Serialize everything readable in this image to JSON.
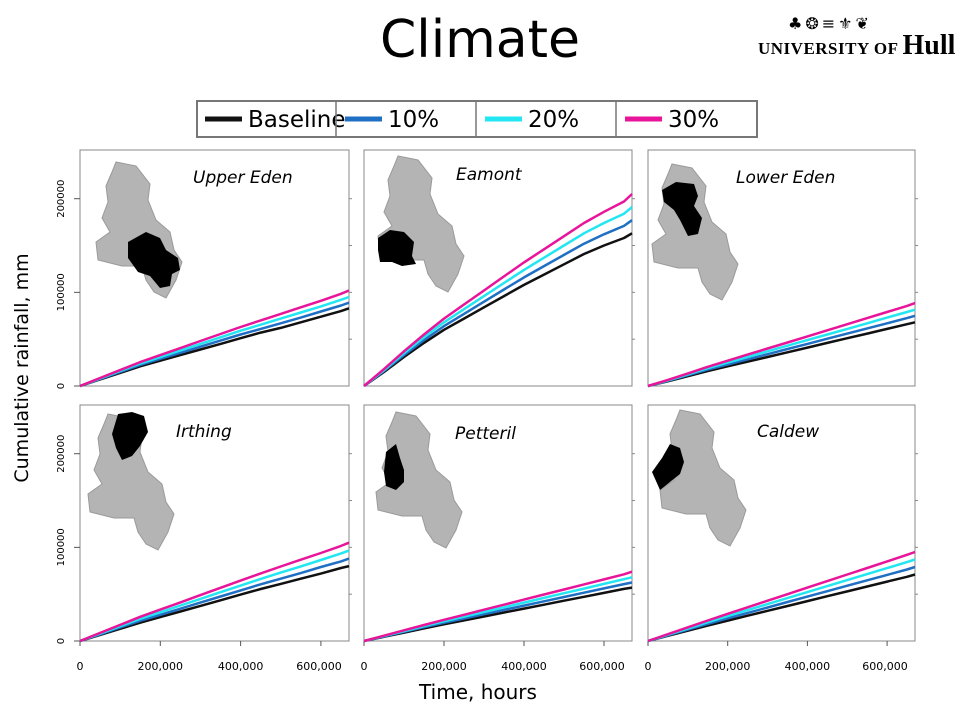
{
  "title": "Climate",
  "logo": {
    "icons": "♣❂≡⚜❦",
    "university": "UNIVERSITY OF",
    "name": "Hull"
  },
  "colors": {
    "baseline": "#111111",
    "p10": "#1f6fc4",
    "p20": "#22e6f2",
    "p30": "#e8159a",
    "map_fill": "#b4b4b4",
    "highlight": "#000000",
    "axis": "#555555"
  },
  "legend": [
    {
      "label": "Baseline",
      "color": "#111111"
    },
    {
      "label": "10%",
      "color": "#1f6fc4"
    },
    {
      "label": "20%",
      "color": "#22e6f2"
    },
    {
      "label": "30%",
      "color": "#e8159a"
    }
  ],
  "ylabel": "Cumulative rainfall,  mm",
  "xlabel": "Time, hours",
  "chart_data": {
    "type": "line",
    "xlim": [
      0,
      670000
    ],
    "ylim": [
      0,
      252000
    ],
    "x_ticks": [
      "0",
      "200,000",
      "400,000",
      "600,000"
    ],
    "y_ticks": [
      "0",
      "100000",
      "200000"
    ],
    "x": [
      0,
      50000,
      100000,
      150000,
      200000,
      250000,
      300000,
      350000,
      400000,
      450000,
      500000,
      550000,
      600000,
      650000,
      670000
    ],
    "panels": [
      {
        "name": "Upper Eden",
        "series": [
          {
            "name": "Baseline",
            "values": [
              0,
              7000,
              14000,
              21000,
              27000,
              33000,
              39000,
              45000,
              51000,
              57000,
              62000,
              68000,
              74000,
              80000,
              83000
            ]
          },
          {
            "name": "10%",
            "values": [
              0,
              7500,
              15000,
              22500,
              29000,
              35500,
              42000,
              48500,
              55000,
              61000,
              67000,
              73000,
              79500,
              86000,
              89000
            ]
          },
          {
            "name": "20%",
            "values": [
              0,
              8000,
              16000,
              24000,
              31000,
              38000,
              45000,
              52000,
              59000,
              65500,
              72000,
              78500,
              85000,
              92000,
              95000
            ]
          },
          {
            "name": "30%",
            "values": [
              0,
              8500,
              17000,
              25500,
              33000,
              40500,
              48000,
              55500,
              63000,
              70000,
              77000,
              84000,
              91000,
              98500,
              102000
            ]
          }
        ]
      },
      {
        "name": "Eamont",
        "series": [
          {
            "name": "Baseline",
            "values": [
              0,
              15000,
              31000,
              46000,
              60000,
              72000,
              84000,
              96000,
              108000,
              119000,
              130000,
              141000,
              150000,
              158000,
              163000
            ]
          },
          {
            "name": "10%",
            "values": [
              0,
              16000,
              33000,
              49000,
              64000,
              77000,
              90000,
              103000,
              116000,
              128000,
              140000,
              152000,
              162000,
              171000,
              177000
            ]
          },
          {
            "name": "20%",
            "values": [
              0,
              17000,
              35000,
              52000,
              68000,
              82000,
              96000,
              110000,
              124000,
              137000,
              150000,
              163000,
              174000,
              184000,
              191000
            ]
          },
          {
            "name": "30%",
            "values": [
              0,
              18000,
              37000,
              55000,
              72000,
              87000,
              102000,
              117000,
              132000,
              146000,
              160000,
              174000,
              186000,
              197000,
              205000
            ]
          }
        ]
      },
      {
        "name": "Lower Eden",
        "series": [
          {
            "name": "Baseline",
            "values": [
              0,
              5000,
              10500,
              16000,
              21000,
              26000,
              31000,
              36000,
              41000,
              46000,
              51000,
              56000,
              61000,
              66000,
              68000
            ]
          },
          {
            "name": "10%",
            "values": [
              0,
              5500,
              11500,
              17500,
              23000,
              28500,
              34000,
              39500,
              45000,
              50500,
              56000,
              61500,
              67000,
              72500,
              75000
            ]
          },
          {
            "name": "20%",
            "values": [
              0,
              6000,
              12500,
              19000,
              25000,
              31000,
              37000,
              43000,
              49000,
              55000,
              61000,
              67000,
              73000,
              79000,
              81500
            ]
          },
          {
            "name": "30%",
            "values": [
              0,
              6500,
              13500,
              20500,
              27000,
              33500,
              40000,
              46500,
              53000,
              59500,
              66000,
              72500,
              79000,
              85500,
              88500
            ]
          }
        ]
      },
      {
        "name": "Irthing",
        "series": [
          {
            "name": "Baseline",
            "values": [
              0,
              6500,
              13000,
              19500,
              25500,
              31500,
              37500,
              43500,
              49500,
              55500,
              61000,
              66500,
              72000,
              78000,
              80000
            ]
          },
          {
            "name": "10%",
            "values": [
              0,
              7200,
              14400,
              21600,
              28000,
              34500,
              41000,
              47500,
              54000,
              60500,
              66500,
              72500,
              79000,
              85000,
              88000
            ]
          },
          {
            "name": "20%",
            "values": [
              0,
              7900,
              15800,
              23700,
              30800,
              37900,
              45000,
              52100,
              59200,
              66300,
              73000,
              79700,
              86500,
              93500,
              96500
            ]
          },
          {
            "name": "30%",
            "values": [
              0,
              8600,
              17200,
              25800,
              33500,
              41200,
              49000,
              56800,
              64500,
              72200,
              79500,
              86800,
              94000,
              101500,
              105000
            ]
          }
        ]
      },
      {
        "name": "Petteril",
        "series": [
          {
            "name": "Baseline",
            "values": [
              0,
              4500,
              9000,
              13500,
              17800,
              22000,
              26200,
              30400,
              34600,
              38800,
              43000,
              47200,
              51400,
              55600,
              57000
            ]
          },
          {
            "name": "10%",
            "values": [
              0,
              4900,
              9800,
              14700,
              19400,
              24000,
              28600,
              33200,
              37800,
              42400,
              47000,
              51600,
              56200,
              60800,
              62500
            ]
          },
          {
            "name": "20%",
            "values": [
              0,
              5300,
              10600,
              15900,
              21000,
              26000,
              31000,
              36000,
              41000,
              46000,
              51000,
              56000,
              61000,
              66000,
              68000
            ]
          },
          {
            "name": "30%",
            "values": [
              0,
              5700,
              11400,
              17100,
              22600,
              28000,
              33400,
              38800,
              44200,
              49600,
              55000,
              60400,
              65800,
              71200,
              74000
            ]
          }
        ]
      },
      {
        "name": "Caldew",
        "series": [
          {
            "name": "Baseline",
            "values": [
              0,
              5500,
              11000,
              16500,
              21800,
              27000,
              32200,
              37400,
              42600,
              47800,
              53000,
              58200,
              63400,
              68600,
              71000
            ]
          },
          {
            "name": "10%",
            "values": [
              0,
              6100,
              12200,
              18300,
              24200,
              30000,
              35800,
              41600,
              47400,
              53200,
              59000,
              64800,
              70600,
              76400,
              79000
            ]
          },
          {
            "name": "20%",
            "values": [
              0,
              6700,
              13400,
              20100,
              26600,
              33000,
              39400,
              45800,
              52200,
              58600,
              65000,
              71400,
              77800,
              84200,
              87000
            ]
          },
          {
            "name": "30%",
            "values": [
              0,
              7300,
              14600,
              21900,
              29000,
              36000,
              43000,
              50000,
              57000,
              64000,
              71000,
              78000,
              85000,
              92000,
              95000
            ]
          }
        ]
      }
    ]
  }
}
